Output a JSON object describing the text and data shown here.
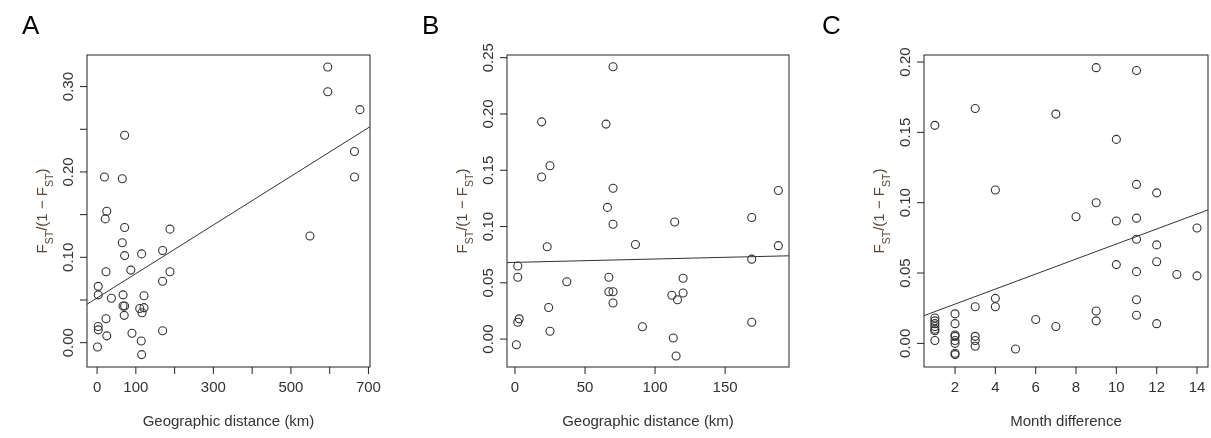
{
  "chart_data": [
    {
      "type": "scatter",
      "title": "A",
      "xlabel": "Geographic distance (km)",
      "ylabel": "F$_{ST}$/(1 − F$_{ST}$)",
      "xlim": [
        -26,
        704
      ],
      "ylim": [
        -0.0285,
        0.337
      ],
      "xticks": [
        0,
        100,
        {
          "value": 200,
          "label": null
        },
        300,
        {
          "value": 400,
          "label": null
        },
        500,
        {
          "value": 600,
          "label": null
        },
        700
      ],
      "yticks": [
        {
          "value": 0,
          "label": "0.00"
        },
        {
          "value": 0.05,
          "label": null
        },
        {
          "value": 0.1,
          "label": "0.10"
        },
        {
          "value": 0.15,
          "label": null
        },
        {
          "value": 0.2,
          "label": "0.20"
        },
        {
          "value": 0.25,
          "label": null
        },
        {
          "value": 0.3,
          "label": "0.30"
        }
      ],
      "series": [
        {
          "color": "#333333",
          "marker": "circle",
          "x": [
            595,
            595,
            678,
            664,
            664,
            549,
            71,
            19,
            65,
            25,
            21,
            71,
            188,
            65,
            169,
            71,
            115,
            23,
            87,
            188,
            169,
            3,
            3,
            37,
            67,
            121,
            67,
            71,
            110,
            121,
            116,
            70,
            23,
            3,
            3,
            25,
            90,
            169,
            114,
            1,
            115
          ],
          "values": [
            0.323,
            0.294,
            0.273,
            0.224,
            0.194,
            0.125,
            0.243,
            0.194,
            0.192,
            0.154,
            0.145,
            0.135,
            0.133,
            0.117,
            0.108,
            0.102,
            0.104,
            0.083,
            0.085,
            0.083,
            0.072,
            0.066,
            0.056,
            0.052,
            0.056,
            0.055,
            0.043,
            0.043,
            0.04,
            0.041,
            0.035,
            0.032,
            0.028,
            0.019,
            0.015,
            0.008,
            0.011,
            0.014,
            0.002,
            -0.005,
            -0.014
          ]
        },
        {
          "type": "line",
          "color": "#333333",
          "x": [
            -26,
            704
          ],
          "marker": "none",
          "values": [
            0.045,
            0.253
          ]
        }
      ]
    },
    {
      "type": "scatter",
      "title": "B",
      "xlabel": "Geographic distance (km)",
      "ylabel": "F$_{ST}$/(1 − F$_{ST}$)",
      "xlim": [
        -5.7,
        195.6
      ],
      "ylim": [
        -0.0248,
        0.2524
      ],
      "xticks": [
        0,
        50,
        100,
        150
      ],
      "yticks": [
        {
          "value": 0,
          "label": "0.00"
        },
        {
          "value": 0.05,
          "label": "0.05"
        },
        {
          "value": 0.1,
          "label": "0.10"
        },
        {
          "value": 0.15,
          "label": "0.15"
        },
        {
          "value": 0.2,
          "label": "0.20"
        },
        {
          "value": 0.25,
          "label": "0.25"
        }
      ],
      "series": [
        {
          "color": "#333333",
          "marker": "circle",
          "x": [
            70,
            19,
            65,
            25,
            19,
            70,
            188,
            66,
            70,
            114,
            169,
            23,
            86,
            188,
            169,
            2,
            2,
            37,
            67,
            120,
            67,
            70,
            112,
            120,
            116,
            70,
            24,
            3,
            2,
            25,
            91,
            169,
            113,
            1,
            115
          ],
          "values": [
            0.242,
            0.193,
            0.191,
            0.154,
            0.144,
            0.134,
            0.132,
            0.117,
            0.102,
            0.104,
            0.108,
            0.082,
            0.084,
            0.083,
            0.071,
            0.065,
            0.055,
            0.051,
            0.055,
            0.054,
            0.042,
            0.042,
            0.039,
            0.041,
            0.035,
            0.032,
            0.028,
            0.018,
            0.015,
            0.007,
            0.011,
            0.015,
            0.001,
            -0.005,
            -0.015
          ]
        },
        {
          "type": "line",
          "color": "#333333",
          "x": [
            -5.7,
            195.6
          ],
          "marker": "none",
          "values": [
            0.068,
            0.074
          ]
        }
      ]
    },
    {
      "type": "scatter",
      "title": "C",
      "xlabel": "Month difference",
      "ylabel": "F$_{ST}$/(1 − F$_{ST}$)",
      "xlim": [
        0.461,
        14.545
      ],
      "ylim": [
        -0.0168,
        0.205
      ],
      "xticks": [
        2,
        4,
        6,
        8,
        10,
        12,
        14
      ],
      "yticks": [
        {
          "value": 0,
          "label": "0.00"
        },
        {
          "value": 0.05,
          "label": "0.05"
        },
        {
          "value": 0.1,
          "label": "0.10"
        },
        {
          "value": 0.15,
          "label": "0.15"
        },
        {
          "value": 0.2,
          "label": "0.20"
        }
      ],
      "series": [
        {
          "color": "#333333",
          "marker": "circle",
          "x": [
            1,
            1,
            1,
            1,
            1,
            1,
            1,
            1,
            2,
            2,
            2,
            2,
            2,
            2,
            2,
            2,
            3,
            3,
            3,
            3,
            3,
            4,
            4,
            4,
            5,
            6,
            7,
            7,
            8,
            9,
            9,
            9,
            9,
            10,
            10,
            10,
            11,
            11,
            11,
            11,
            11,
            11,
            11,
            12,
            12,
            12,
            12,
            13,
            14,
            14
          ],
          "values": [
            0.155,
            0.018,
            0.016,
            0.014,
            0.012,
            0.01,
            0.009,
            0.002,
            0.021,
            0.014,
            0.006,
            0.005,
            0.002,
            0,
            -0.007,
            -0.008,
            0.167,
            0.026,
            0.005,
            0.002,
            -0.002,
            0.109,
            0.032,
            0.026,
            -0.004,
            0.017,
            0.163,
            0.012,
            0.09,
            0.196,
            0.1,
            0.023,
            0.016,
            0.145,
            0.087,
            0.056,
            0.194,
            0.113,
            0.089,
            0.074,
            0.051,
            0.031,
            0.02,
            0.107,
            0.07,
            0.058,
            0.014,
            0.049,
            0.082,
            0.048
          ]
        },
        {
          "type": "line",
          "color": "#333333",
          "x": [
            0.461,
            14.545
          ],
          "marker": "none",
          "values": [
            0.0197,
            0.0949
          ]
        }
      ]
    }
  ]
}
